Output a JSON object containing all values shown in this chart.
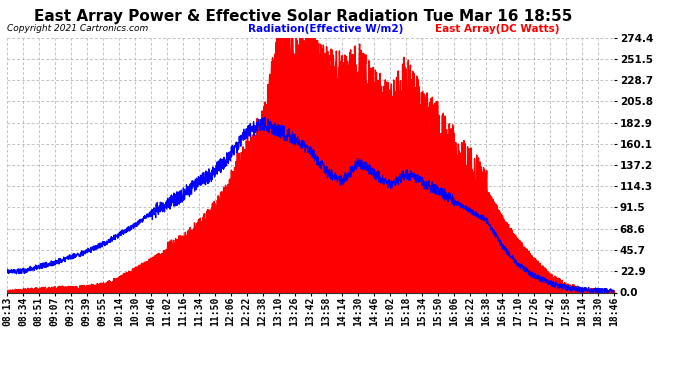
{
  "title": "East Array Power & Effective Solar Radiation Tue Mar 16 18:55",
  "copyright": "Copyright 2021 Cartronics.com",
  "legend_radiation": "Radiation(Effective W/m2)",
  "legend_east": "East Array(DC Watts)",
  "legend_radiation_color": "blue",
  "legend_east_color": "red",
  "ylabel_right_values": [
    274.4,
    251.5,
    228.7,
    205.8,
    182.9,
    160.1,
    137.2,
    114.3,
    91.5,
    68.6,
    45.7,
    22.9,
    0.0
  ],
  "ymax": 274.4,
  "ymin": 0.0,
  "background_color": "#ffffff",
  "grid_color": "#aaaaaa",
  "fill_color": "red",
  "line_color": "blue",
  "title_fontsize": 11,
  "axis_fontsize": 7,
  "x_tick_labels": [
    "08:13",
    "08:34",
    "08:51",
    "09:07",
    "09:23",
    "09:39",
    "09:55",
    "10:14",
    "10:30",
    "10:46",
    "11:02",
    "11:16",
    "11:34",
    "11:50",
    "12:06",
    "12:22",
    "12:38",
    "13:10",
    "13:26",
    "13:42",
    "13:58",
    "14:14",
    "14:30",
    "14:46",
    "15:02",
    "15:18",
    "15:34",
    "15:50",
    "16:06",
    "16:22",
    "16:38",
    "16:54",
    "17:10",
    "17:26",
    "17:42",
    "17:58",
    "18:14",
    "18:30",
    "18:46"
  ],
  "rad_x": [
    0,
    1,
    2,
    3,
    4,
    5,
    6,
    7,
    8,
    9,
    10,
    11,
    12,
    13,
    14,
    15,
    16,
    17,
    18,
    19,
    20,
    21,
    22,
    23,
    24,
    25,
    26,
    27,
    28,
    29,
    30,
    31,
    32,
    33,
    34,
    35,
    36,
    37,
    38
  ],
  "rad_y": [
    0,
    2,
    3,
    4,
    5,
    6,
    8,
    15,
    25,
    35,
    45,
    55,
    70,
    90,
    115,
    145,
    175,
    274,
    255,
    260,
    240,
    235,
    245,
    220,
    200,
    235,
    195,
    180,
    155,
    135,
    110,
    80,
    55,
    35,
    18,
    8,
    3,
    1,
    0
  ],
  "east_x": [
    0,
    1,
    2,
    3,
    4,
    5,
    6,
    7,
    8,
    9,
    10,
    11,
    12,
    13,
    14,
    15,
    16,
    17,
    18,
    19,
    20,
    21,
    22,
    23,
    24,
    25,
    26,
    27,
    28,
    29,
    30,
    31,
    32,
    33,
    34,
    35,
    36,
    37,
    38
  ],
  "east_y": [
    22,
    23,
    28,
    32,
    38,
    44,
    52,
    62,
    72,
    85,
    95,
    105,
    118,
    130,
    148,
    172,
    182,
    175,
    165,
    152,
    130,
    120,
    140,
    128,
    115,
    128,
    118,
    110,
    98,
    88,
    78,
    50,
    30,
    18,
    10,
    5,
    3,
    2,
    1
  ]
}
